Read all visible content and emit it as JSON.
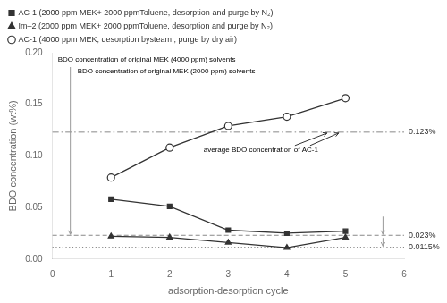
{
  "chart_data": {
    "type": "line",
    "x": [
      1,
      2,
      3,
      4,
      5
    ],
    "series": [
      {
        "name": "AC-1 (2000 ppm MEK+ 2000 ppmToluene, desorption and purge by N₂)",
        "color": "#333333",
        "marker": "square",
        "values": [
          0.058,
          0.051,
          0.028,
          0.025,
          0.027
        ]
      },
      {
        "name": "Im–2 (2000 ppm MEK+ 2000 ppmToluene, desorption and purge by N₂)",
        "color": "#333333",
        "marker": "triangle",
        "values": [
          0.022,
          0.021,
          0.016,
          0.011,
          0.021
        ]
      },
      {
        "name": "AC-1 (4000 ppm MEK, desorption bysteam , purge by dry air)",
        "color": "#333333",
        "marker": "open_circle",
        "values": [
          0.079,
          0.108,
          0.129,
          0.138,
          0.156
        ]
      }
    ],
    "xlabel": "adsorption-desorption cycle",
    "ylabel": "BDO concentration (wt%)",
    "xlim": [
      0,
      6
    ],
    "xticks": [
      0,
      1,
      2,
      3,
      4,
      5,
      6
    ],
    "ylim": [
      0,
      0.2
    ],
    "yticks": [
      {
        "value": 0,
        "label": "0.00"
      },
      0.05,
      {
        "value": 0.1,
        "label": "0.10"
      },
      0.15,
      {
        "value": 0.2,
        "label": "0.20"
      }
    ],
    "grid": false,
    "legend": "upper left",
    "reference_lines": [
      {
        "value": 0.123,
        "label": "0.123%",
        "line_style": "dashdot",
        "color": "#888888"
      },
      {
        "value": 0.023,
        "label": "0.023%",
        "line_style": "dashed",
        "color": "#888888"
      },
      {
        "value": 0.0115,
        "label": "0.0115%",
        "line_style": "dotted",
        "color": "#888888"
      }
    ],
    "annotations": [
      {
        "text": "BDO concentration of original MEK (4000 ppm) solvents",
        "arrow_to": [
          0.023
        ]
      },
      {
        "text": "BDO concentration of original MEK (2000 ppm) solvents",
        "arrow_to": [
          0.023,
          0.0115
        ]
      },
      {
        "text": "average BDO concentration of AC-1",
        "arrow_to": [
          0.123
        ]
      }
    ]
  }
}
